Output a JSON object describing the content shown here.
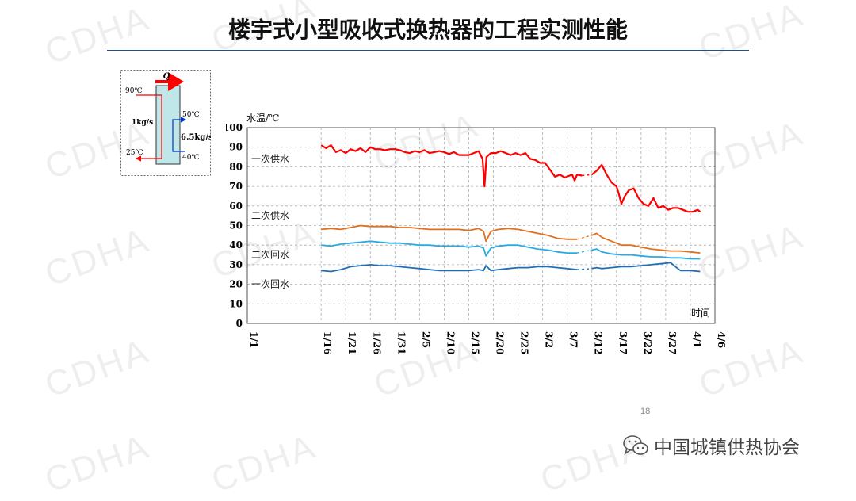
{
  "title": "楼宇式小型吸收式换热器的工程实测性能",
  "watermark": "CDHA",
  "page_number": "18",
  "brand": {
    "name": "中国城镇供热协会",
    "icon": "wechat-icon"
  },
  "colors": {
    "title_rule": "#1f4e99",
    "primary_supply": "#ff0000",
    "secondary_supply": "#e0701e",
    "secondary_return": "#2aaae2",
    "primary_return": "#1f6fb7",
    "diagram_box": "#bfe6e8"
  },
  "diagram": {
    "hot_in_temp": "90℃",
    "hot_out_temp": "25℃",
    "hot_flow": "1kg/s",
    "cold_out_temp": "50℃",
    "cold_in_temp": "40℃",
    "cold_flow": "6.5kg/s",
    "heat_label": "Q"
  },
  "chart_data": {
    "type": "line",
    "ylabel": "水温/℃",
    "xlabel": "时间",
    "ylim": [
      0,
      100
    ],
    "xlim": [
      0,
      95
    ],
    "y_ticks": [
      0,
      10,
      20,
      30,
      40,
      50,
      60,
      70,
      80,
      90,
      100
    ],
    "x_tick_labels": [
      "1/1",
      "1/16",
      "1/21",
      "1/26",
      "1/31",
      "2/5",
      "2/10",
      "2/15",
      "2/20",
      "2/25",
      "3/2",
      "3/7",
      "3/12",
      "3/17",
      "3/22",
      "3/27",
      "4/1",
      "4/6"
    ],
    "x_tick_positions": [
      0,
      15,
      20,
      25,
      30,
      35,
      40,
      45,
      50,
      55,
      60,
      65,
      70,
      75,
      80,
      85,
      90,
      95
    ],
    "grid": "dashed",
    "x_units": "days since 1/1",
    "series": [
      {
        "name": "一次供水",
        "color": "#ff0000",
        "label_value": 84,
        "points": [
          [
            15,
            91
          ],
          [
            16,
            89.5
          ],
          [
            17,
            91
          ],
          [
            18,
            87.5
          ],
          [
            19,
            88.5
          ],
          [
            20,
            87
          ],
          [
            21,
            89
          ],
          [
            22,
            88
          ],
          [
            23,
            89.5
          ],
          [
            24,
            87.5
          ],
          [
            25,
            90
          ],
          [
            26,
            89
          ],
          [
            27,
            89
          ],
          [
            28,
            88.5
          ],
          [
            29,
            89
          ],
          [
            30,
            89
          ],
          [
            31,
            88.5
          ],
          [
            32,
            87.5
          ],
          [
            33,
            87
          ],
          [
            34,
            88
          ],
          [
            35,
            87.5
          ],
          [
            36,
            88.5
          ],
          [
            37,
            87
          ],
          [
            38,
            87.5
          ],
          [
            39,
            88
          ],
          [
            40,
            87.5
          ],
          [
            41,
            86.5
          ],
          [
            42,
            87.5
          ],
          [
            43,
            86
          ],
          [
            44,
            86
          ],
          [
            45,
            86
          ],
          [
            46,
            87
          ],
          [
            47,
            88
          ],
          [
            47.8,
            84
          ],
          [
            48.2,
            70
          ],
          [
            48.6,
            85
          ],
          [
            49.5,
            87
          ],
          [
            50.5,
            87
          ],
          [
            51.5,
            88
          ],
          [
            52.5,
            87
          ],
          [
            53.5,
            86
          ],
          [
            54.5,
            87
          ],
          [
            55.5,
            86
          ],
          [
            56.5,
            87
          ],
          [
            57.5,
            84
          ],
          [
            58.5,
            83.5
          ],
          [
            59.5,
            82
          ],
          [
            60.5,
            82
          ],
          [
            61.5,
            78.5
          ],
          [
            62.5,
            75
          ],
          [
            63.5,
            76
          ],
          [
            64.5,
            74.5
          ],
          [
            65.5,
            75.5
          ],
          [
            66,
            76
          ],
          [
            66.5,
            73
          ],
          [
            67,
            76
          ],
          [
            68,
            75.5
          ],
          [
            69,
            76
          ],
          [
            70,
            76
          ],
          [
            71,
            78
          ],
          [
            72,
            81
          ],
          [
            73,
            76
          ],
          [
            74,
            72
          ],
          [
            75,
            70
          ],
          [
            75.5,
            66
          ],
          [
            76,
            61
          ],
          [
            76.7,
            65
          ],
          [
            77.5,
            68
          ],
          [
            78.5,
            69
          ],
          [
            79.5,
            64
          ],
          [
            80.5,
            61
          ],
          [
            81.5,
            60
          ],
          [
            82.5,
            64
          ],
          [
            83.5,
            59
          ],
          [
            84.5,
            60
          ],
          [
            85.5,
            58
          ],
          [
            86.5,
            59
          ],
          [
            87.5,
            59
          ],
          [
            88.5,
            58
          ],
          [
            89.5,
            57
          ],
          [
            90.5,
            57
          ],
          [
            91.5,
            58
          ],
          [
            92,
            57
          ]
        ],
        "gap": [
          68,
          70
        ]
      },
      {
        "name": "二次供水",
        "color": "#e0701e",
        "label_value": 55,
        "points": [
          [
            15,
            48
          ],
          [
            17,
            48.5
          ],
          [
            19,
            48
          ],
          [
            21,
            49
          ],
          [
            23,
            50
          ],
          [
            25,
            49.5
          ],
          [
            27,
            49.5
          ],
          [
            29,
            49.5
          ],
          [
            31,
            49
          ],
          [
            33,
            49
          ],
          [
            35,
            48.5
          ],
          [
            37,
            48
          ],
          [
            39,
            48
          ],
          [
            41,
            48
          ],
          [
            43,
            48
          ],
          [
            45,
            47.5
          ],
          [
            47,
            48.5
          ],
          [
            48,
            47
          ],
          [
            48.5,
            42
          ],
          [
            49.5,
            47
          ],
          [
            51,
            48
          ],
          [
            53,
            48.5
          ],
          [
            55,
            48
          ],
          [
            57,
            47
          ],
          [
            59,
            46
          ],
          [
            61,
            45
          ],
          [
            63,
            43.5
          ],
          [
            65,
            43
          ],
          [
            67,
            43
          ],
          [
            69,
            43
          ],
          [
            70,
            45
          ],
          [
            71,
            46
          ],
          [
            72,
            44
          ],
          [
            74,
            42
          ],
          [
            76,
            40
          ],
          [
            78,
            40
          ],
          [
            80,
            39
          ],
          [
            82,
            38
          ],
          [
            84,
            37.5
          ],
          [
            86,
            37
          ],
          [
            88,
            37
          ],
          [
            90,
            36.5
          ],
          [
            92,
            36
          ]
        ],
        "gap": [
          68,
          70
        ]
      },
      {
        "name": "二次回水",
        "color": "#2aaae2",
        "label_value": 35,
        "points": [
          [
            15,
            40
          ],
          [
            17,
            39.5
          ],
          [
            19,
            40.5
          ],
          [
            21,
            41
          ],
          [
            23,
            41.5
          ],
          [
            25,
            42
          ],
          [
            27,
            41.5
          ],
          [
            29,
            41
          ],
          [
            31,
            41
          ],
          [
            33,
            40.5
          ],
          [
            35,
            40
          ],
          [
            37,
            40
          ],
          [
            39,
            39.5
          ],
          [
            41,
            39.5
          ],
          [
            43,
            39.5
          ],
          [
            45,
            39
          ],
          [
            47,
            39.5
          ],
          [
            48,
            38.5
          ],
          [
            48.5,
            34.5
          ],
          [
            49.5,
            38.5
          ],
          [
            51,
            39.5
          ],
          [
            53,
            40
          ],
          [
            55,
            40
          ],
          [
            57,
            39
          ],
          [
            59,
            38
          ],
          [
            61,
            37.5
          ],
          [
            63,
            36.5
          ],
          [
            65,
            36
          ],
          [
            67,
            36
          ],
          [
            69,
            36
          ],
          [
            70,
            37.5
          ],
          [
            71,
            38
          ],
          [
            72,
            36.5
          ],
          [
            74,
            35.5
          ],
          [
            76,
            35
          ],
          [
            78,
            35
          ],
          [
            80,
            34.5
          ],
          [
            82,
            34
          ],
          [
            84,
            34
          ],
          [
            86,
            33.5
          ],
          [
            88,
            33.5
          ],
          [
            90,
            33
          ],
          [
            92,
            33
          ]
        ],
        "gap": [
          68,
          70
        ]
      },
      {
        "name": "一次回水",
        "color": "#1f6fb7",
        "label_value": 20,
        "points": [
          [
            15,
            27
          ],
          [
            17,
            26.5
          ],
          [
            19,
            27.5
          ],
          [
            21,
            29
          ],
          [
            23,
            29.5
          ],
          [
            25,
            30
          ],
          [
            27,
            29.5
          ],
          [
            29,
            29.5
          ],
          [
            31,
            29
          ],
          [
            33,
            28.5
          ],
          [
            35,
            28
          ],
          [
            37,
            27.5
          ],
          [
            39,
            27
          ],
          [
            41,
            27
          ],
          [
            43,
            27
          ],
          [
            45,
            27
          ],
          [
            47,
            27.5
          ],
          [
            48,
            27
          ],
          [
            48.5,
            29.5
          ],
          [
            49.5,
            27
          ],
          [
            51,
            27.5
          ],
          [
            53,
            28
          ],
          [
            55,
            28.5
          ],
          [
            57,
            28.5
          ],
          [
            59,
            29
          ],
          [
            61,
            29
          ],
          [
            63,
            28.5
          ],
          [
            65,
            28
          ],
          [
            67,
            27.5
          ],
          [
            69,
            27
          ],
          [
            70,
            28
          ],
          [
            71,
            28.5
          ],
          [
            72,
            28
          ],
          [
            74,
            28.5
          ],
          [
            76,
            29
          ],
          [
            78,
            29
          ],
          [
            80,
            29.5
          ],
          [
            82,
            30
          ],
          [
            84,
            30.5
          ],
          [
            86,
            31
          ],
          [
            87,
            29
          ],
          [
            88,
            27
          ],
          [
            90,
            27
          ],
          [
            92,
            26.5
          ]
        ],
        "gap": [
          68,
          70
        ]
      }
    ]
  }
}
